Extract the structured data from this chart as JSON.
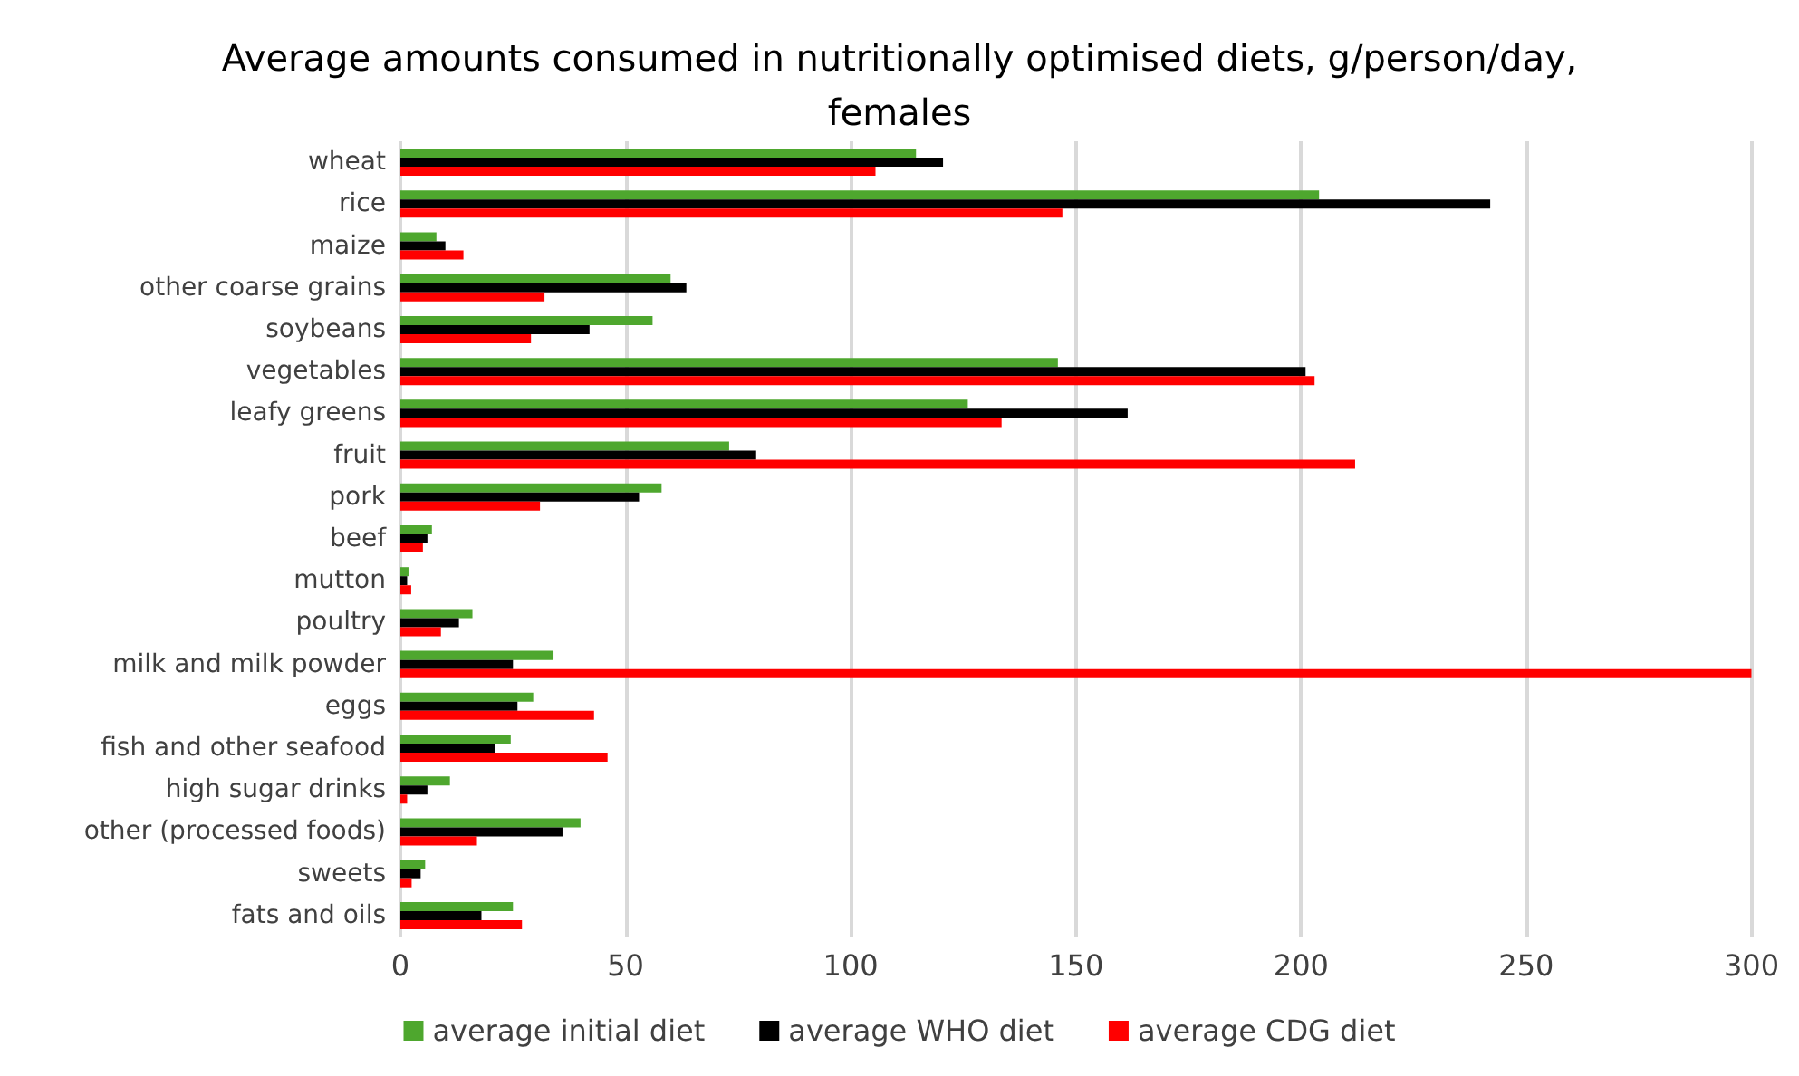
{
  "chart_data": {
    "type": "bar",
    "orientation": "horizontal",
    "title": "Average amounts consumed in nutritionally optimised diets, g/person/day,\nfemales",
    "categories": [
      "wheat",
      "rice",
      "maize",
      "other coarse grains",
      "soybeans",
      "vegetables",
      "leafy greens",
      "fruit",
      "pork",
      "beef",
      "mutton",
      "poultry",
      "milk and milk powder",
      "eggs",
      "fish and other seafood",
      "high sugar drinks",
      "other (processed foods)",
      "sweets",
      "fats and oils"
    ],
    "series": [
      {
        "name": "average initial diet",
        "color": "#4ea72e",
        "values": [
          114.5,
          204,
          8,
          60,
          56,
          146,
          126,
          73,
          58,
          7,
          1.8,
          16,
          34,
          29.5,
          24.5,
          11,
          40,
          5.5,
          25
        ]
      },
      {
        "name": "average WHO diet",
        "color": "#000000",
        "values": [
          120.5,
          242,
          10,
          63.5,
          42,
          201,
          161.5,
          79,
          53,
          6,
          1.5,
          13,
          25,
          26,
          21,
          6,
          36,
          4.5,
          18
        ]
      },
      {
        "name": "average CDG diet",
        "color": "#ff0000",
        "values": [
          105.5,
          147,
          14,
          32,
          29,
          203,
          133.5,
          212,
          31,
          5,
          2.4,
          9,
          300,
          43,
          46,
          1.5,
          17,
          2.5,
          27
        ]
      }
    ],
    "xlim": [
      0,
      300
    ],
    "xticks": [
      0,
      50,
      100,
      150,
      200,
      250,
      300
    ],
    "grid": "x",
    "legend": "bottom"
  }
}
